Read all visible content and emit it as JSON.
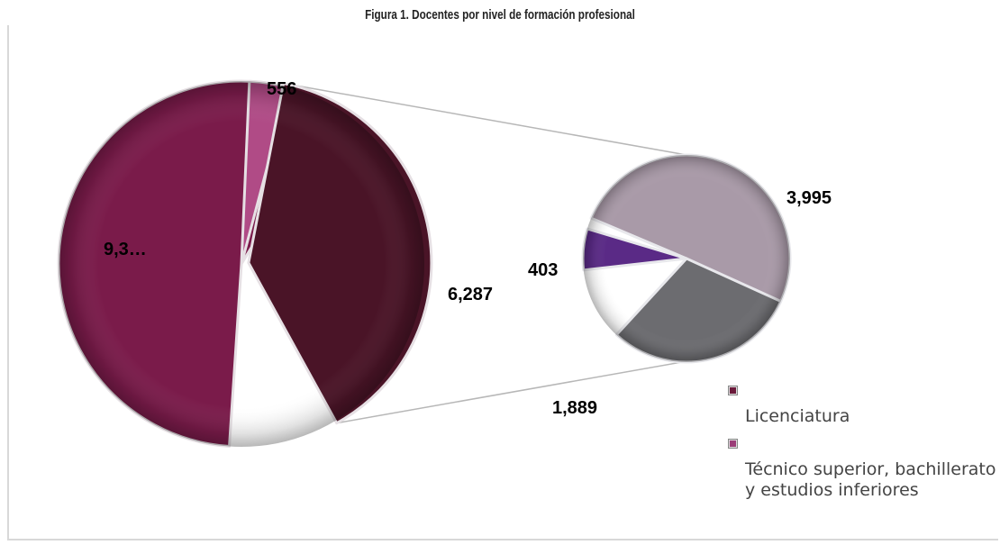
{
  "chart_data": {
    "type": "pie",
    "subtype": "pie-of-pie",
    "title": "Figura 1. Docentes por nivel de formación profesional",
    "main_pie": {
      "slices": [
        {
          "label": "9,3…",
          "value": 9300,
          "color": "#7a1b4a"
        },
        {
          "label": "556",
          "value": 556,
          "color": "#b04b86"
        },
        {
          "label": "6,287",
          "value": 6287,
          "color": "#4a1427"
        }
      ]
    },
    "secondary_pie": {
      "slices": [
        {
          "label": "3,995",
          "value": 3995,
          "color": "#a99aa8"
        },
        {
          "label": "1,889",
          "value": 1889,
          "color": "#6c6c70"
        },
        {
          "label": "403",
          "value": 403,
          "color": "#5a2a86"
        }
      ]
    },
    "legend": [
      {
        "label": "Licenciatura",
        "color": "#6b1a3b"
      },
      {
        "label": "Técnico superior, bachillerato y estudios inferiores",
        "color": "#9b3d78"
      }
    ]
  }
}
